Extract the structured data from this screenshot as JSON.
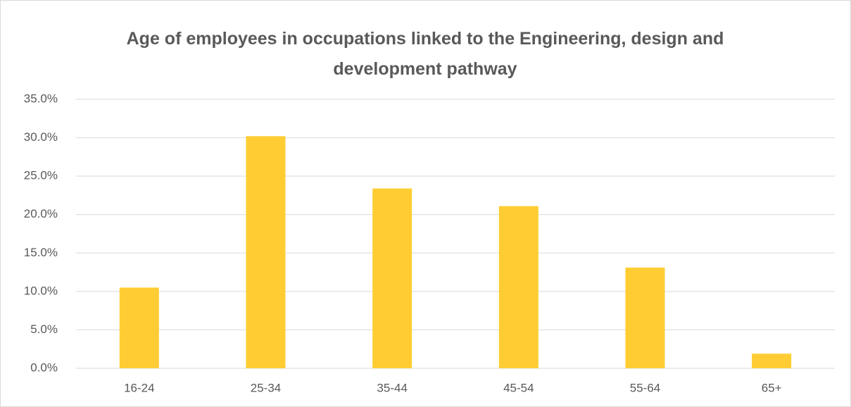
{
  "chart_data": {
    "type": "bar",
    "title": "Age of employees in occupations linked to the Engineering, design and development pathway",
    "categories": [
      "16-24",
      "25-34",
      "35-44",
      "45-54",
      "55-64",
      "65+"
    ],
    "values": [
      10.5,
      30.2,
      23.4,
      21.1,
      13.1,
      1.9
    ],
    "color": "#ffcd33",
    "ylim": [
      0,
      35
    ],
    "yticks": [
      {
        "value": 0,
        "label": "0.0%"
      },
      {
        "value": 5,
        "label": "5.0%"
      },
      {
        "value": 10,
        "label": "10.0%"
      },
      {
        "value": 15,
        "label": "15.0%"
      },
      {
        "value": 20,
        "label": "20.0%"
      },
      {
        "value": 25,
        "label": "25.0%"
      },
      {
        "value": 30,
        "label": "30.0%"
      },
      {
        "value": 35,
        "label": "35.0%"
      }
    ],
    "grid": true
  }
}
